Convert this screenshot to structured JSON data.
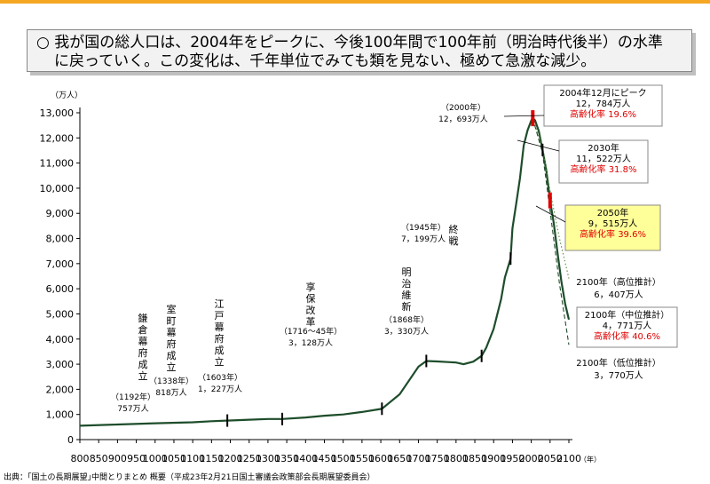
{
  "colors": {
    "top_bar": "#f5a623",
    "line": "#1e4d2b",
    "red": "#e00000",
    "highlight_fill": "#ffff99"
  },
  "headline": {
    "line1": "○ 我が国の総人口は、2004年をピークに、今後100年間で100年前（明治時代後半）の水準",
    "line2": "に戻っていく。この変化は、千年単位でみても類を見ない、極めて急激な減少。"
  },
  "source": "出典：｢国土の長期展望｣中間とりまとめ 概要（平成23年2月21日国土審議会政策部会長期展望委員会）",
  "chart_data": {
    "type": "line",
    "title": "",
    "ylabel": "（万人）",
    "xlabel": "（年）",
    "xlim": [
      800,
      2100
    ],
    "ylim": [
      0,
      13000
    ],
    "xticks": [
      800,
      850,
      900,
      950,
      1000,
      1050,
      1100,
      1150,
      1200,
      1250,
      1300,
      1350,
      1400,
      1450,
      1500,
      1550,
      1600,
      1650,
      1700,
      1750,
      1800,
      1850,
      1900,
      1950,
      2000,
      2050,
      2100
    ],
    "yticks": [
      0,
      1000,
      2000,
      3000,
      4000,
      5000,
      6000,
      7000,
      8000,
      9000,
      10000,
      11000,
      12000,
      13000
    ],
    "ytick_labels": [
      "0",
      "1,000",
      "2,000",
      "3,000",
      "4,000",
      "5,000",
      "6,000",
      "7,000",
      "8,000",
      "9,000",
      "10,000",
      "11,000",
      "12,000",
      "13,000"
    ],
    "series": [
      {
        "style": "solid",
        "x": [
          800,
          900,
          1000,
          1100,
          1150,
          1192,
          1250,
          1300,
          1338,
          1400,
          1450,
          1500,
          1550,
          1600,
          1603,
          1650,
          1700,
          1721,
          1750,
          1800,
          1820,
          1846,
          1868,
          1880,
          1900,
          1920,
          1930,
          1945,
          1950,
          1960,
          1970,
          1980,
          1990,
          2000,
          2004,
          2010,
          2020,
          2030,
          2040,
          2050,
          2060,
          2070,
          2080,
          2090,
          2100
        ],
        "y": [
          551,
          600,
          650,
          690,
          730,
          757,
          790,
          820,
          818,
          880,
          950,
          1000,
          1100,
          1220,
          1227,
          1800,
          2900,
          3128,
          3110,
          3065,
          3000,
          3100,
          3330,
          3650,
          4400,
          5600,
          6450,
          7199,
          8400,
          9400,
          10400,
          11700,
          12300,
          12693,
          12784,
          12700,
          12270,
          11522,
          10700,
          9515,
          8600,
          7400,
          6300,
          5400,
          4771
        ]
      },
      {
        "name": "2100年（高位推計）",
        "style": "dotted",
        "x": [
          2004,
          2030,
          2050,
          2075,
          2100
        ],
        "y": [
          12784,
          11650,
          9900,
          8000,
          6407
        ]
      },
      {
        "name": "2100年（低位推計）",
        "style": "dashed",
        "x": [
          2004,
          2030,
          2050,
          2075,
          2100
        ],
        "y": [
          12784,
          11400,
          9100,
          6200,
          3770
        ]
      }
    ],
    "ticks_marks": [
      1192,
      1338,
      1603,
      1721,
      1868,
      1945,
      2004,
      2030,
      2050
    ],
    "annotations": {
      "kamakura": {
        "vertical": "鎌倉幕府成立",
        "year": "（1192年）",
        "value": "757万人"
      },
      "muromachi": {
        "vertical": "室町幕府成立",
        "year": "（1338年）",
        "value": "818万人"
      },
      "edo": {
        "vertical": "江戸幕府成立",
        "year": "（1603年）",
        "value": "1，227万人"
      },
      "kyoho": {
        "vertical": "享保改革",
        "year": "（1716～45年）",
        "value": "3，128万人"
      },
      "meiji": {
        "vertical": "明治維新",
        "year": "（1868年）",
        "value": "3，330万人"
      },
      "war_end": {
        "vertical": "終戦",
        "year": "（1945年）",
        "value": "7，199万人"
      },
      "y2000": {
        "year": "（2000年）",
        "value": "12，693万人"
      },
      "peak": {
        "line1": "2004年12月にピーク",
        "line2": "12，784万人",
        "line3": "高齢化率 19.6%"
      },
      "y2030": {
        "line1": "2030年",
        "line2": "11，522万人",
        "line3": "高齢化率 31.8%"
      },
      "y2050": {
        "line1": "2050年",
        "line2": "9，515万人",
        "line3": "高齢化率 39.6%"
      },
      "high": {
        "line1": "2100年（高位推計）",
        "line2": "6，407万人"
      },
      "mid": {
        "line1": "2100年（中位推計）",
        "line2": "4，771万人",
        "line3": "高齢化率 40.6%"
      },
      "low": {
        "line1": "2100年（低位推計）",
        "line2": "3，770万人"
      }
    }
  }
}
